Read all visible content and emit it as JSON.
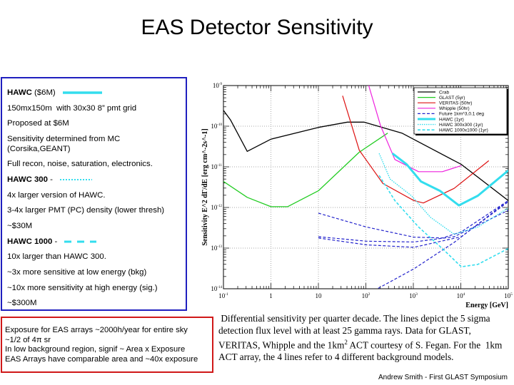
{
  "title": "EAS Detector Sensitivity",
  "left_panel": {
    "items": [
      {
        "bold": "HAWC",
        "text": " ($6M)",
        "legend": "solid"
      },
      {
        "text": "150mx150m  with 30x30 8” pmt grid"
      },
      {
        "text": "Proposed at $6M"
      },
      {
        "text": "Sensitivity determined from MC (Corsika,GEANT)"
      },
      {
        "text": "Full recon, noise, saturation, electronics."
      },
      {
        "bold": "HAWC 300",
        "text": " -",
        "legend": "dotted"
      },
      {
        "text": "4x larger version of HAWC."
      },
      {
        "text": "3-4x larger PMT (PC) density (lower thresh)"
      },
      {
        "text": "~$30M"
      },
      {
        "bold": "HAWC 1000",
        "text": " -",
        "legend": "dashed"
      },
      {
        "text": "10x larger than HAWC 300."
      },
      {
        "text": "~3x more sensitive at low energy (bkg)"
      },
      {
        "text": "~10x more sensitivity at high energy (sig.)"
      },
      {
        "text": "~$300M"
      }
    ],
    "legend_color": "#33ddee"
  },
  "red_box": {
    "lines": [
      "Exposure for EAS arrays ~2000h/year for entire sky",
      "~1/2 of 4π sr",
      "In low background region, signif ~ Area x Exposure",
      "EAS Arrays have comparable area and ~40x exposure"
    ]
  },
  "caption": {
    "lines": [
      " Differential sensitivity per quarter decade. The lines depict the 5 sigma",
      "detection flux level with at least 25 gamma rays. Data for GLAST,",
      "VERITAS, Whipple and the 1km",
      "ACT array, the 4 lines refer to 4 different background models."
    ],
    "line3_sup": "2",
    "line3_rest": " ACT courtesy of S. Fegan. For the  1km"
  },
  "footer": "Andrew Smith - First GLAST Symposium",
  "chart_data": {
    "type": "line",
    "xlabel": "Energy [GeV]",
    "ylabel": "Sensitivity E^2 dΓ/dE [erg cm^-2s^-1]",
    "xscale": "log",
    "yscale": "log",
    "xlim": [
      0.1,
      100000
    ],
    "ylim": [
      1e-14,
      1e-09
    ],
    "grid": true,
    "legend_position": "top-right",
    "xticks": [
      {
        "base": "10",
        "exp": "-1"
      },
      {
        "base": "1",
        "exp": ""
      },
      {
        "base": "10",
        "exp": ""
      },
      {
        "base": "10",
        "exp": "2"
      },
      {
        "base": "10",
        "exp": "3"
      },
      {
        "base": "10",
        "exp": "4"
      },
      {
        "base": "10",
        "exp": "5"
      }
    ],
    "yticks": [
      {
        "base": "10",
        "exp": "-9"
      },
      {
        "base": "10",
        "exp": "-10"
      },
      {
        "base": "10",
        "exp": "-11"
      },
      {
        "base": "10",
        "exp": "-12"
      },
      {
        "base": "10",
        "exp": "-13"
      },
      {
        "base": "10",
        "exp": "-14"
      }
    ],
    "series": [
      {
        "name": "Crab",
        "color": "#000000",
        "style": "solid",
        "width": 1.3,
        "log10_x": [
          -1,
          -0.85,
          -0.5,
          0,
          1,
          1.61,
          1.96,
          2.76,
          4.01,
          5
        ],
        "log10_y": [
          -9.61,
          -9.85,
          -10.62,
          -10.32,
          -10.03,
          -9.9,
          -9.9,
          -10.17,
          -10.94,
          -11.83
        ]
      },
      {
        "name": "GLAST (5yr)",
        "color": "#22cc22",
        "style": "solid",
        "width": 1.3,
        "log10_x": [
          -1,
          -0.5,
          0,
          0.35,
          1,
          1.86,
          2.46
        ],
        "log10_y": [
          -11.36,
          -11.75,
          -11.98,
          -11.98,
          -11.59,
          -10.64,
          -10.17
        ]
      },
      {
        "name": "VERITAS (50hr)",
        "color": "#dd1111",
        "style": "solid",
        "width": 1.2,
        "log10_x": [
          1.51,
          1.86,
          2.36,
          3.01,
          3.21,
          3.86,
          4.59
        ],
        "log10_y": [
          -9.25,
          -10.59,
          -11.41,
          -11.83,
          -11.89,
          -11.53,
          -10.85
        ]
      },
      {
        "name": "Whipple (50hr)",
        "color": "#ee22dd",
        "style": "solid",
        "width": 1.2,
        "log10_x": [
          2.06,
          2.31,
          2.61,
          3.11,
          3.61,
          4.01
        ],
        "log10_y": [
          -9.0,
          -9.99,
          -10.82,
          -11.12,
          -11.12,
          -10.97
        ]
      },
      {
        "name": "Future 1km^3,0.1 deg",
        "color": "#2222cc",
        "style": "dashed",
        "width": 1.2,
        "lines": [
          {
            "log10_x": [
              1,
              2.01,
              3.01,
              3.61,
              4.01,
              5
            ],
            "log10_y": [
              -12.14,
              -12.48,
              -12.73,
              -12.75,
              -12.6,
              -11.83
            ]
          },
          {
            "log10_x": [
              1,
              2.01,
              3.01,
              3.86,
              5
            ],
            "log10_y": [
              -12.72,
              -12.83,
              -12.85,
              -12.72,
              -12.07
            ]
          },
          {
            "log10_x": [
              1,
              2.01,
              3.01,
              4.01,
              5
            ],
            "log10_y": [
              -12.75,
              -12.92,
              -12.98,
              -12.72,
              -11.86
            ]
          },
          {
            "log10_x": [
              2.26,
              3.01,
              3.86,
              5
            ],
            "log10_y": [
              -13.99,
              -13.51,
              -12.86,
              -11.83
            ]
          }
        ]
      },
      {
        "name": "HAWC (1yr)",
        "color": "#33ddee",
        "style": "solid",
        "width": 3,
        "log10_x": [
          2.56,
          2.86,
          3.16,
          3.56,
          3.96,
          4.36,
          5
        ],
        "log10_y": [
          -10.67,
          -10.94,
          -11.36,
          -11.59,
          -11.95,
          -11.71,
          -11.09
        ]
      },
      {
        "name": "HAWC 300x300 (1yr)",
        "color": "#33ddee",
        "style": "dotted",
        "width": 1.4,
        "log10_x": [
          2.28,
          2.51,
          2.96,
          3.36,
          3.86,
          4.36,
          5
        ],
        "log10_y": [
          -10.67,
          -11.3,
          -11.71,
          -12.24,
          -12.66,
          -12.48,
          -12.01
        ]
      },
      {
        "name": "HAWC 1000x1000 (1yr)",
        "color": "#33ddee",
        "style": "dashed",
        "width": 1.6,
        "log10_x": [
          2.28,
          2.61,
          3.11,
          3.61,
          4.01,
          4.36,
          5
        ],
        "log10_y": [
          -11.21,
          -11.83,
          -12.48,
          -13.01,
          -13.46,
          -13.4,
          -13.01
        ]
      }
    ]
  }
}
